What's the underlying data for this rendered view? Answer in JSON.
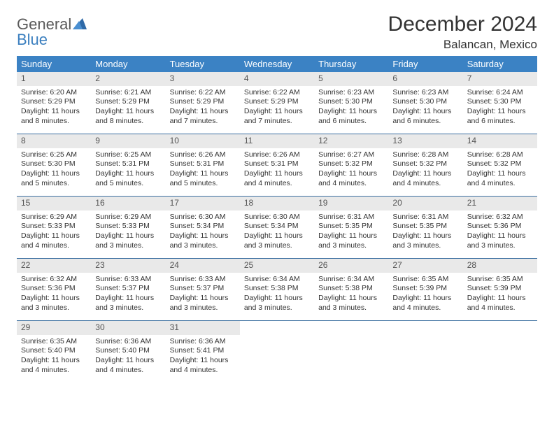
{
  "logo": {
    "general": "General",
    "blue": "Blue"
  },
  "title": "December 2024",
  "location": "Balancan, Mexico",
  "colors": {
    "header_bg": "#3b82c4",
    "header_text": "#ffffff",
    "row_divider": "#3b6fa0",
    "daynum_bg": "#e9e9e9",
    "logo_blue": "#3b7fbf",
    "logo_gray": "#5a5a5a"
  },
  "daysOfWeek": [
    "Sunday",
    "Monday",
    "Tuesday",
    "Wednesday",
    "Thursday",
    "Friday",
    "Saturday"
  ],
  "cells": [
    {
      "n": "1",
      "sr": "6:20 AM",
      "ss": "5:29 PM",
      "dl": "11 hours and 8 minutes."
    },
    {
      "n": "2",
      "sr": "6:21 AM",
      "ss": "5:29 PM",
      "dl": "11 hours and 8 minutes."
    },
    {
      "n": "3",
      "sr": "6:22 AM",
      "ss": "5:29 PM",
      "dl": "11 hours and 7 minutes."
    },
    {
      "n": "4",
      "sr": "6:22 AM",
      "ss": "5:29 PM",
      "dl": "11 hours and 7 minutes."
    },
    {
      "n": "5",
      "sr": "6:23 AM",
      "ss": "5:30 PM",
      "dl": "11 hours and 6 minutes."
    },
    {
      "n": "6",
      "sr": "6:23 AM",
      "ss": "5:30 PM",
      "dl": "11 hours and 6 minutes."
    },
    {
      "n": "7",
      "sr": "6:24 AM",
      "ss": "5:30 PM",
      "dl": "11 hours and 6 minutes."
    },
    {
      "n": "8",
      "sr": "6:25 AM",
      "ss": "5:30 PM",
      "dl": "11 hours and 5 minutes."
    },
    {
      "n": "9",
      "sr": "6:25 AM",
      "ss": "5:31 PM",
      "dl": "11 hours and 5 minutes."
    },
    {
      "n": "10",
      "sr": "6:26 AM",
      "ss": "5:31 PM",
      "dl": "11 hours and 5 minutes."
    },
    {
      "n": "11",
      "sr": "6:26 AM",
      "ss": "5:31 PM",
      "dl": "11 hours and 4 minutes."
    },
    {
      "n": "12",
      "sr": "6:27 AM",
      "ss": "5:32 PM",
      "dl": "11 hours and 4 minutes."
    },
    {
      "n": "13",
      "sr": "6:28 AM",
      "ss": "5:32 PM",
      "dl": "11 hours and 4 minutes."
    },
    {
      "n": "14",
      "sr": "6:28 AM",
      "ss": "5:32 PM",
      "dl": "11 hours and 4 minutes."
    },
    {
      "n": "15",
      "sr": "6:29 AM",
      "ss": "5:33 PM",
      "dl": "11 hours and 4 minutes."
    },
    {
      "n": "16",
      "sr": "6:29 AM",
      "ss": "5:33 PM",
      "dl": "11 hours and 3 minutes."
    },
    {
      "n": "17",
      "sr": "6:30 AM",
      "ss": "5:34 PM",
      "dl": "11 hours and 3 minutes."
    },
    {
      "n": "18",
      "sr": "6:30 AM",
      "ss": "5:34 PM",
      "dl": "11 hours and 3 minutes."
    },
    {
      "n": "19",
      "sr": "6:31 AM",
      "ss": "5:35 PM",
      "dl": "11 hours and 3 minutes."
    },
    {
      "n": "20",
      "sr": "6:31 AM",
      "ss": "5:35 PM",
      "dl": "11 hours and 3 minutes."
    },
    {
      "n": "21",
      "sr": "6:32 AM",
      "ss": "5:36 PM",
      "dl": "11 hours and 3 minutes."
    },
    {
      "n": "22",
      "sr": "6:32 AM",
      "ss": "5:36 PM",
      "dl": "11 hours and 3 minutes."
    },
    {
      "n": "23",
      "sr": "6:33 AM",
      "ss": "5:37 PM",
      "dl": "11 hours and 3 minutes."
    },
    {
      "n": "24",
      "sr": "6:33 AM",
      "ss": "5:37 PM",
      "dl": "11 hours and 3 minutes."
    },
    {
      "n": "25",
      "sr": "6:34 AM",
      "ss": "5:38 PM",
      "dl": "11 hours and 3 minutes."
    },
    {
      "n": "26",
      "sr": "6:34 AM",
      "ss": "5:38 PM",
      "dl": "11 hours and 3 minutes."
    },
    {
      "n": "27",
      "sr": "6:35 AM",
      "ss": "5:39 PM",
      "dl": "11 hours and 4 minutes."
    },
    {
      "n": "28",
      "sr": "6:35 AM",
      "ss": "5:39 PM",
      "dl": "11 hours and 4 minutes."
    },
    {
      "n": "29",
      "sr": "6:35 AM",
      "ss": "5:40 PM",
      "dl": "11 hours and 4 minutes."
    },
    {
      "n": "30",
      "sr": "6:36 AM",
      "ss": "5:40 PM",
      "dl": "11 hours and 4 minutes."
    },
    {
      "n": "31",
      "sr": "6:36 AM",
      "ss": "5:41 PM",
      "dl": "11 hours and 4 minutes."
    },
    {
      "empty": true
    },
    {
      "empty": true
    },
    {
      "empty": true
    },
    {
      "empty": true
    }
  ],
  "labels": {
    "sunrise": "Sunrise:",
    "sunset": "Sunset:",
    "daylight": "Daylight:"
  }
}
